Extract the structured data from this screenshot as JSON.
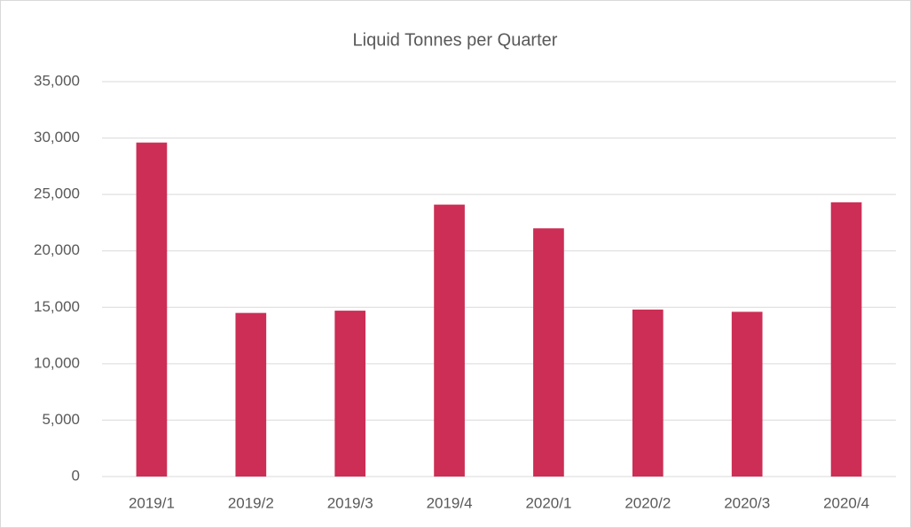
{
  "chart_data": {
    "type": "bar",
    "title": "Liquid Tonnes per Quarter",
    "categories": [
      "2019/1",
      "2019/2",
      "2019/3",
      "2019/4",
      "2020/1",
      "2020/2",
      "2020/3",
      "2020/4"
    ],
    "values": [
      29600,
      14500,
      14700,
      24100,
      22000,
      14800,
      14600,
      24300
    ],
    "color": "#cc2e55",
    "ylim": [
      0,
      35000
    ],
    "yticks": [
      0,
      {
        "value": 5000,
        "label": "5,000"
      },
      {
        "value": 10000,
        "label": "10,000"
      },
      {
        "value": 15000,
        "label": "15,000"
      },
      {
        "value": 20000,
        "label": "20,000"
      },
      {
        "value": 25000,
        "label": "25,000"
      },
      {
        "value": 30000,
        "label": "30,000"
      },
      {
        "value": 35000,
        "label": "35,000"
      }
    ],
    "grid": true
  }
}
